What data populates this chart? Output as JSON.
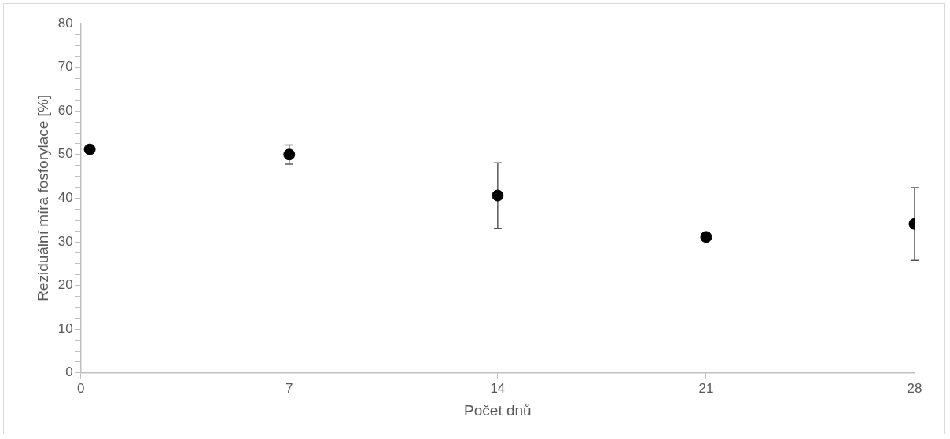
{
  "chart_data": {
    "type": "scatter",
    "xlabel": "Počet dnů",
    "ylabel": "Reziduální míra fosforylace [%]",
    "x": [
      0.3,
      7,
      14,
      21,
      28
    ],
    "series": [
      {
        "color": "#000000",
        "values": [
          51.2,
          50.0,
          40.6,
          31.1,
          34.1
        ],
        "errors": [
          null,
          2.2,
          7.5,
          null,
          8.3
        ]
      }
    ],
    "xlim": [
      0,
      28
    ],
    "xticks": [
      0,
      7,
      14,
      21,
      28
    ],
    "ylim": [
      0,
      80
    ],
    "yticks": [
      0,
      {
        "value": 2.5,
        "label": null
      },
      {
        "value": 5,
        "label": null
      },
      {
        "value": 7.5,
        "label": null
      },
      10,
      {
        "value": 12.5,
        "label": null
      },
      {
        "value": 15,
        "label": null
      },
      {
        "value": 17.5,
        "label": null
      },
      20,
      {
        "value": 22.5,
        "label": null
      },
      {
        "value": 25,
        "label": null
      },
      {
        "value": 27.5,
        "label": null
      },
      30,
      {
        "value": 32.5,
        "label": null
      },
      {
        "value": 35,
        "label": null
      },
      {
        "value": 37.5,
        "label": null
      },
      40,
      {
        "value": 42.5,
        "label": null
      },
      {
        "value": 45,
        "label": null
      },
      {
        "value": 47.5,
        "label": null
      },
      50,
      {
        "value": 52.5,
        "label": null
      },
      {
        "value": 55,
        "label": null
      },
      {
        "value": 57.5,
        "label": null
      },
      60,
      {
        "value": 62.5,
        "label": null
      },
      {
        "value": 65,
        "label": null
      },
      {
        "value": 67.5,
        "label": null
      },
      70,
      {
        "value": 72.5,
        "label": null
      },
      {
        "value": 75,
        "label": null
      },
      {
        "value": 77.5,
        "label": null
      },
      80
    ],
    "marker": "circle",
    "grid": false,
    "legend": false
  }
}
